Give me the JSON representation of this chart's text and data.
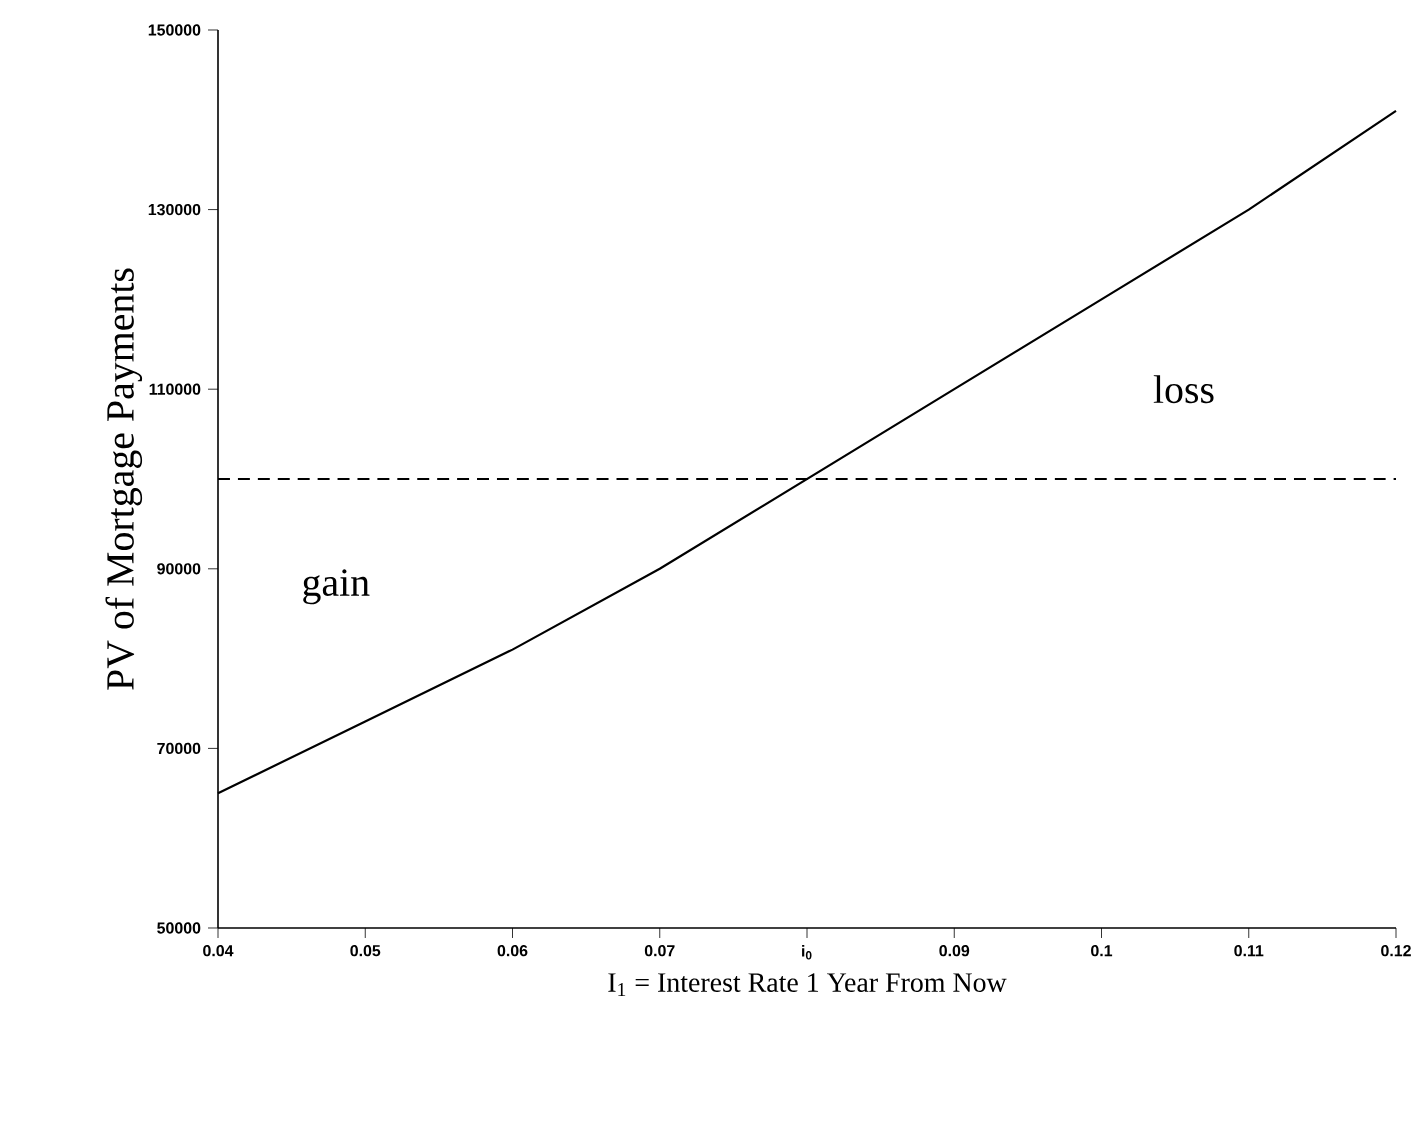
{
  "chart_data": {
    "type": "line",
    "xlabel": "I$_{1}$ = Interest Rate 1 Year From Now",
    "ylabel": "PV of Mortgage Payments",
    "x": [
      0.04,
      0.05,
      0.06,
      0.07,
      0.08,
      0.09,
      0.1,
      0.11,
      0.12
    ],
    "series": [
      {
        "color": "#000000",
        "line_style": "solid",
        "values": [
          65000,
          73000,
          81000,
          90000,
          100000,
          110000,
          120000,
          130000,
          141000
        ]
      }
    ],
    "xlim": [
      0.04,
      0.12
    ],
    "xticks": [
      0.04,
      0.05,
      0.06,
      0.07,
      {
        "value": 0.08,
        "label": "i$_{0}$"
      },
      0.09,
      0.1,
      0.11,
      0.12
    ],
    "ylim": [
      50000,
      150000
    ],
    "yticks": [
      50000,
      70000,
      90000,
      110000,
      130000,
      150000
    ],
    "ref_lines": [
      {
        "axis": "y",
        "value": 100000,
        "color": "#000000",
        "line_style": "dashed"
      }
    ],
    "annotations": [
      "gain",
      "loss"
    ],
    "grid": false,
    "marker": "none"
  }
}
